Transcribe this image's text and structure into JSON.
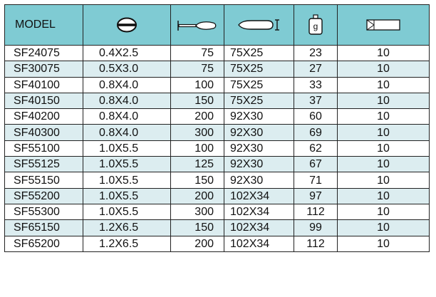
{
  "table": {
    "header": {
      "model": "MODEL",
      "weight_glyph": "g",
      "icons": [
        "slotted-tip-icon",
        "screwdriver-length-icon",
        "handle-size-icon",
        "weight-icon",
        "box-quantity-icon"
      ]
    },
    "rows": [
      {
        "model": "SF24075",
        "tip": "0.4X2.5",
        "length": "75",
        "handle": "75X25",
        "weight": "23",
        "pack": "10"
      },
      {
        "model": "SF30075",
        "tip": "0.5X3.0",
        "length": "75",
        "handle": "75X25",
        "weight": "27",
        "pack": "10"
      },
      {
        "model": "SF40100",
        "tip": "0.8X4.0",
        "length": "100",
        "handle": "75X25",
        "weight": "33",
        "pack": "10"
      },
      {
        "model": "SF40150",
        "tip": "0.8X4.0",
        "length": "150",
        "handle": "75X25",
        "weight": "37",
        "pack": "10"
      },
      {
        "model": "SF40200",
        "tip": "0.8X4.0",
        "length": "200",
        "handle": "92X30",
        "weight": "60",
        "pack": "10"
      },
      {
        "model": "SF40300",
        "tip": "0.8X4.0",
        "length": "300",
        "handle": "92X30",
        "weight": "69",
        "pack": "10"
      },
      {
        "model": "SF55100",
        "tip": "1.0X5.5",
        "length": "100",
        "handle": "92X30",
        "weight": "62",
        "pack": "10"
      },
      {
        "model": "SF55125",
        "tip": "1.0X5.5",
        "length": "125",
        "handle": "92X30",
        "weight": "67",
        "pack": "10"
      },
      {
        "model": "SF55150",
        "tip": "1.0X5.5",
        "length": "150",
        "handle": "92X30",
        "weight": "71",
        "pack": "10"
      },
      {
        "model": "SF55200",
        "tip": "1.0X5.5",
        "length": "200",
        "handle": "102X34",
        "weight": "97",
        "pack": "10"
      },
      {
        "model": "SF55300",
        "tip": "1.0X5.5",
        "length": "300",
        "handle": "102X34",
        "weight": "112",
        "pack": "10"
      },
      {
        "model": "SF65150",
        "tip": "1.2X6.5",
        "length": "150",
        "handle": "102X34",
        "weight": "99",
        "pack": "10"
      },
      {
        "model": "SF65200",
        "tip": "1.2X6.5",
        "length": "200",
        "handle": "102X34",
        "weight": "112",
        "pack": "10"
      }
    ]
  },
  "colors": {
    "header_bg": "#7fcbd3",
    "row_shade": "#dcedf0",
    "border": "#222222"
  }
}
